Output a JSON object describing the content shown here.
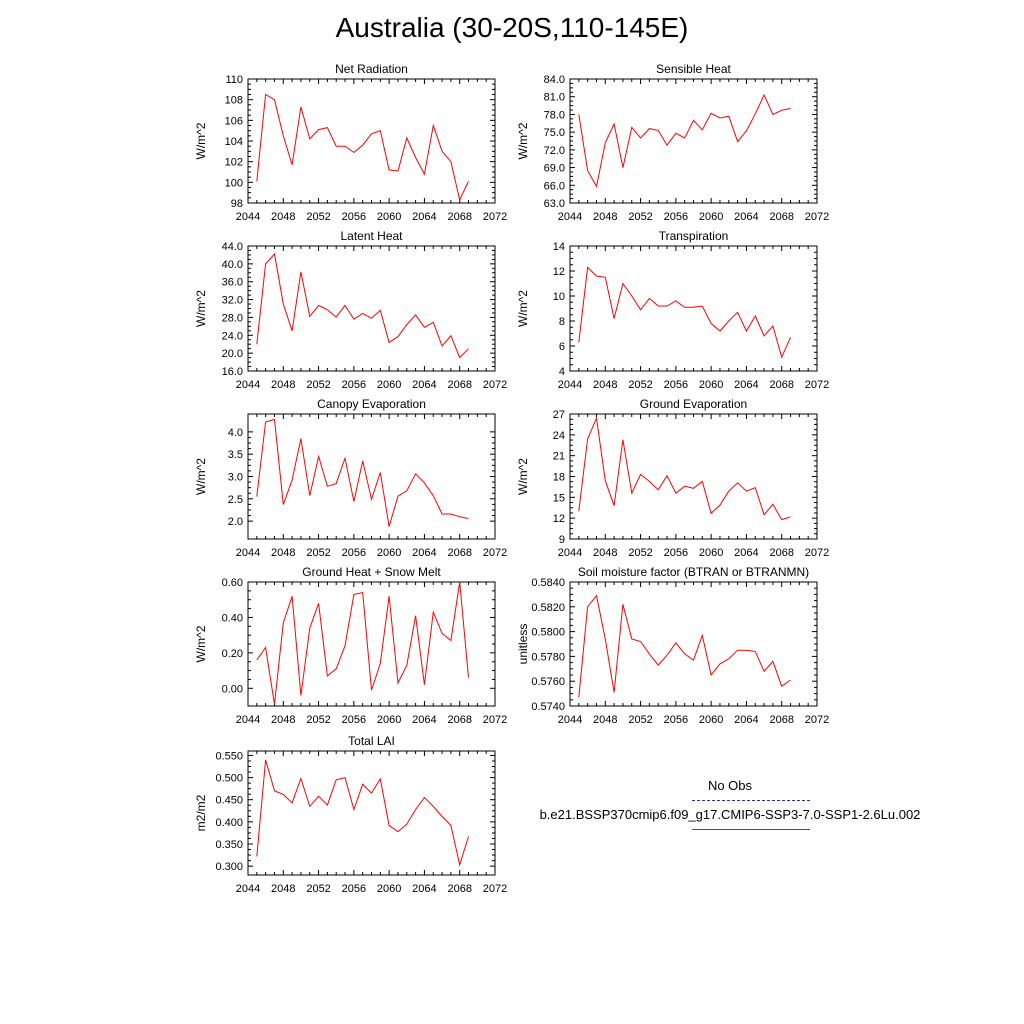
{
  "figure_title": "Australia (30-20S,110-145E)",
  "legend": {
    "obs_label": "No Obs",
    "case_label": "b.e21.BSSP370cmip6.f09_g17.CMIP6-SSP3-7.0-SSP1-2.6Lu.002",
    "obs_color": "#2b2bb0",
    "case_color": "#ff0000"
  },
  "colors": {
    "line": "#ff0000",
    "axis": "#000000",
    "background": "#ffffff"
  },
  "chart_data": [
    {
      "type": "line",
      "title": "Net Radiation",
      "ylabel": "W/m^2",
      "xlim": [
        2044,
        2072
      ],
      "xticks": [
        "2044",
        "2048",
        "2052",
        "2056",
        "2060",
        "2064",
        "2068",
        "2072"
      ],
      "ylim": [
        98,
        110
      ],
      "yticks": [
        "98",
        "100",
        "102",
        "104",
        "106",
        "108",
        "110"
      ],
      "x": [
        2045,
        2046,
        2047,
        2048,
        2049,
        2050,
        2051,
        2052,
        2053,
        2054,
        2055,
        2056,
        2057,
        2058,
        2059,
        2060,
        2061,
        2062,
        2063,
        2064,
        2065,
        2066,
        2067,
        2068,
        2069
      ],
      "y": [
        100.1,
        108.5,
        108.0,
        104.5,
        101.7,
        107.3,
        104.2,
        105.1,
        105.3,
        103.5,
        103.5,
        102.9,
        103.6,
        104.7,
        105.0,
        101.2,
        101.1,
        104.3,
        102.4,
        100.8,
        105.5,
        103.0,
        102.0,
        98.3,
        100.1
      ]
    },
    {
      "type": "line",
      "title": "Sensible Heat",
      "ylabel": "W/m^2",
      "xlim": [
        2044,
        2072
      ],
      "xticks": [
        "2044",
        "2048",
        "2052",
        "2056",
        "2060",
        "2064",
        "2068",
        "2072"
      ],
      "ylim": [
        63,
        84
      ],
      "yticks": [
        "63.0",
        "66.0",
        "69.0",
        "72.0",
        "75.0",
        "78.0",
        "81.0",
        "84.0"
      ],
      "x": [
        2045,
        2046,
        2047,
        2048,
        2049,
        2050,
        2051,
        2052,
        2053,
        2054,
        2055,
        2056,
        2057,
        2058,
        2059,
        2060,
        2061,
        2062,
        2063,
        2064,
        2065,
        2066,
        2067,
        2068,
        2069
      ],
      "y": [
        78.0,
        68.5,
        65.8,
        73.2,
        76.4,
        69.0,
        75.8,
        74.0,
        75.6,
        75.3,
        72.8,
        74.8,
        74.0,
        77.0,
        75.4,
        78.2,
        77.4,
        77.7,
        73.4,
        75.2,
        78.1,
        81.3,
        78.0,
        78.7,
        79.0
      ]
    },
    {
      "type": "line",
      "title": "Latent Heat",
      "ylabel": "W/m^2",
      "xlim": [
        2044,
        2072
      ],
      "xticks": [
        "2044",
        "2048",
        "2052",
        "2056",
        "2060",
        "2064",
        "2068",
        "2072"
      ],
      "ylim": [
        16,
        44
      ],
      "yticks": [
        "16.0",
        "20.0",
        "24.0",
        "28.0",
        "32.0",
        "36.0",
        "40.0",
        "44.0"
      ],
      "x": [
        2045,
        2046,
        2047,
        2048,
        2049,
        2050,
        2051,
        2052,
        2053,
        2054,
        2055,
        2056,
        2057,
        2058,
        2059,
        2060,
        2061,
        2062,
        2063,
        2064,
        2065,
        2066,
        2067,
        2068,
        2069
      ],
      "y": [
        22.0,
        40.0,
        42.2,
        31.0,
        25.0,
        38.2,
        28.2,
        30.7,
        29.7,
        28.1,
        30.7,
        27.6,
        28.9,
        27.8,
        29.6,
        22.4,
        23.7,
        26.4,
        28.6,
        25.8,
        26.9,
        21.6,
        23.9,
        19.0,
        21.0
      ]
    },
    {
      "type": "line",
      "title": "Transpiration",
      "ylabel": "W/m^2",
      "xlim": [
        2044,
        2072
      ],
      "xticks": [
        "2044",
        "2048",
        "2052",
        "2056",
        "2060",
        "2064",
        "2068",
        "2072"
      ],
      "ylim": [
        4,
        14
      ],
      "yticks": [
        "4",
        "6",
        "8",
        "10",
        "12",
        "14"
      ],
      "x": [
        2045,
        2046,
        2047,
        2048,
        2049,
        2050,
        2051,
        2052,
        2053,
        2054,
        2055,
        2056,
        2057,
        2058,
        2059,
        2060,
        2061,
        2062,
        2063,
        2064,
        2065,
        2066,
        2067,
        2068,
        2069
      ],
      "y": [
        6.3,
        12.3,
        11.6,
        11.5,
        8.2,
        11.0,
        10.0,
        8.9,
        9.8,
        9.2,
        9.2,
        9.6,
        9.1,
        9.1,
        9.2,
        7.8,
        7.2,
        8.0,
        8.7,
        7.2,
        8.4,
        6.8,
        7.6,
        5.1,
        6.7
      ]
    },
    {
      "type": "line",
      "title": "Canopy Evaporation",
      "ylabel": "W/m^2",
      "xlim": [
        2044,
        2072
      ],
      "xticks": [
        "2044",
        "2048",
        "2052",
        "2056",
        "2060",
        "2064",
        "2068",
        "2072"
      ],
      "ylim": [
        1.6,
        4.4
      ],
      "yticks": [
        "2.0",
        "2.5",
        "3.0",
        "3.5",
        "4.0"
      ],
      "x": [
        2045,
        2046,
        2047,
        2048,
        2049,
        2050,
        2051,
        2052,
        2053,
        2054,
        2055,
        2056,
        2057,
        2058,
        2059,
        2060,
        2061,
        2062,
        2063,
        2064,
        2065,
        2066,
        2067,
        2068,
        2069
      ],
      "y": [
        2.55,
        4.22,
        4.28,
        2.37,
        2.92,
        3.85,
        2.57,
        3.45,
        2.78,
        2.84,
        3.41,
        2.44,
        3.35,
        2.49,
        3.09,
        1.88,
        2.56,
        2.68,
        3.06,
        2.86,
        2.57,
        2.16,
        2.16,
        2.1,
        2.06
      ]
    },
    {
      "type": "line",
      "title": "Ground Evaporation",
      "ylabel": "W/m^2",
      "xlim": [
        2044,
        2072
      ],
      "xticks": [
        "2044",
        "2048",
        "2052",
        "2056",
        "2060",
        "2064",
        "2068",
        "2072"
      ],
      "ylim": [
        9,
        27
      ],
      "yticks": [
        "9",
        "12",
        "15",
        "18",
        "21",
        "24",
        "27"
      ],
      "x": [
        2045,
        2046,
        2047,
        2048,
        2049,
        2050,
        2051,
        2052,
        2053,
        2054,
        2055,
        2056,
        2057,
        2058,
        2059,
        2060,
        2061,
        2062,
        2063,
        2064,
        2065,
        2066,
        2067,
        2068,
        2069
      ],
      "y": [
        13.0,
        23.4,
        26.4,
        17.4,
        13.8,
        23.3,
        15.6,
        18.3,
        17.3,
        16.1,
        18.1,
        15.6,
        16.6,
        16.3,
        17.3,
        12.7,
        13.9,
        15.9,
        17.1,
        15.9,
        16.4,
        12.5,
        14.0,
        11.8,
        12.2
      ]
    },
    {
      "type": "line",
      "title": "Ground Heat + Snow Melt",
      "ylabel": "W/m^2",
      "xlim": [
        2044,
        2072
      ],
      "xticks": [
        "2044",
        "2048",
        "2052",
        "2056",
        "2060",
        "2064",
        "2068",
        "2072"
      ],
      "ylim": [
        -0.1,
        0.6
      ],
      "yticks": [
        "0.00",
        "0.20",
        "0.40",
        "0.60"
      ],
      "x": [
        2045,
        2046,
        2047,
        2048,
        2049,
        2050,
        2051,
        2052,
        2053,
        2054,
        2055,
        2056,
        2057,
        2058,
        2059,
        2060,
        2061,
        2062,
        2063,
        2064,
        2065,
        2066,
        2067,
        2068,
        2069
      ],
      "y": [
        0.16,
        0.23,
        -0.09,
        0.37,
        0.52,
        -0.04,
        0.34,
        0.48,
        0.07,
        0.11,
        0.24,
        0.53,
        0.54,
        -0.01,
        0.14,
        0.52,
        0.03,
        0.13,
        0.41,
        0.02,
        0.43,
        0.31,
        0.27,
        0.6,
        0.06
      ]
    },
    {
      "type": "line",
      "title": "Soil moisture factor (BTRAN or BTRANMN)",
      "ylabel": "unitless",
      "xlim": [
        2044,
        2072
      ],
      "xticks": [
        "2044",
        "2048",
        "2052",
        "2056",
        "2060",
        "2064",
        "2068",
        "2072"
      ],
      "ylim": [
        0.574,
        0.584
      ],
      "yticks": [
        "0.5740",
        "0.5760",
        "0.5780",
        "0.5800",
        "0.5820",
        "0.5840"
      ],
      "x": [
        2045,
        2046,
        2047,
        2048,
        2049,
        2050,
        2051,
        2052,
        2053,
        2054,
        2055,
        2056,
        2057,
        2058,
        2059,
        2060,
        2061,
        2062,
        2063,
        2064,
        2065,
        2066,
        2067,
        2068,
        2069
      ],
      "y": [
        0.5747,
        0.582,
        0.5829,
        0.5794,
        0.5751,
        0.5822,
        0.5794,
        0.5792,
        0.5782,
        0.5773,
        0.5781,
        0.5791,
        0.5782,
        0.5777,
        0.5797,
        0.5765,
        0.5774,
        0.5778,
        0.5785,
        0.5785,
        0.5784,
        0.5768,
        0.5776,
        0.5756,
        0.5761
      ]
    },
    {
      "type": "line",
      "title": "Total LAI",
      "ylabel": "m2/m2",
      "xlim": [
        2044,
        2072
      ],
      "xticks": [
        "2044",
        "2048",
        "2052",
        "2056",
        "2060",
        "2064",
        "2068",
        "2072"
      ],
      "ylim": [
        0.28,
        0.56
      ],
      "yticks": [
        "0.300",
        "0.350",
        "0.400",
        "0.450",
        "0.500",
        "0.550"
      ],
      "x": [
        2045,
        2046,
        2047,
        2048,
        2049,
        2050,
        2051,
        2052,
        2053,
        2054,
        2055,
        2056,
        2057,
        2058,
        2059,
        2060,
        2061,
        2062,
        2063,
        2064,
        2065,
        2066,
        2067,
        2068,
        2069
      ],
      "y": [
        0.322,
        0.54,
        0.47,
        0.462,
        0.443,
        0.498,
        0.435,
        0.458,
        0.438,
        0.495,
        0.5,
        0.428,
        0.485,
        0.465,
        0.497,
        0.392,
        0.378,
        0.395,
        0.428,
        0.455,
        0.435,
        0.412,
        0.392,
        0.303,
        0.367
      ]
    }
  ]
}
